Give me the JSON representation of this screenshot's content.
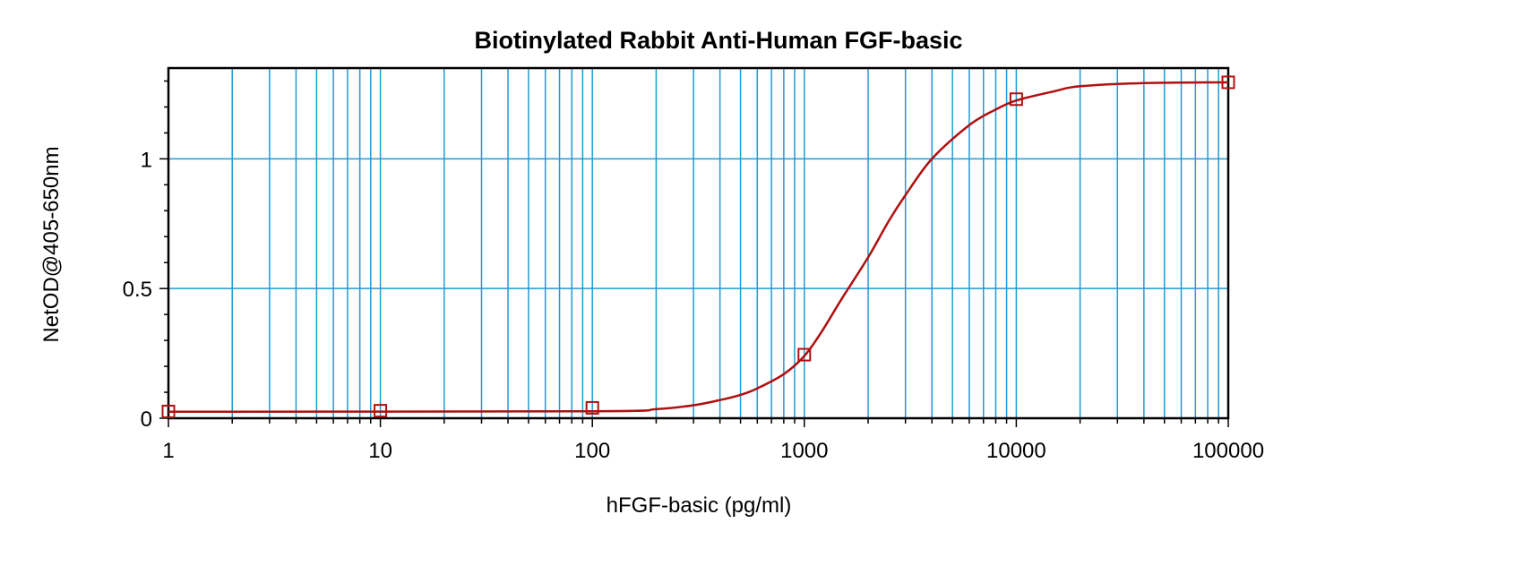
{
  "chart_data": {
    "type": "line",
    "title": "Biotinylated Rabbit Anti-Human FGF-basic",
    "xlabel": "hFGF-basic (pg/ml)",
    "ylabel": "NetOD@405-650nm",
    "x_scale": "log",
    "xlim": [
      1,
      100000
    ],
    "ylim": [
      0,
      1.35
    ],
    "x_ticks": [
      1,
      10,
      100,
      1000,
      10000,
      100000
    ],
    "x_tick_labels": [
      "1",
      "10",
      "100",
      "1000",
      "10000",
      "100000"
    ],
    "y_ticks": [
      0,
      0.5,
      1
    ],
    "y_tick_labels": [
      "0",
      "0.5",
      "1"
    ],
    "grid": true,
    "colors": {
      "grid": "#1e9bd7",
      "series": "#b01010",
      "frame": "#000000"
    },
    "series": [
      {
        "points": [
          {
            "x": 1,
            "y": 0.026
          },
          {
            "x": 10,
            "y": 0.029
          },
          {
            "x": 100,
            "y": 0.04
          },
          {
            "x": 1000,
            "y": 0.245
          },
          {
            "x": 10000,
            "y": 1.23
          },
          {
            "x": 100000,
            "y": 1.295
          }
        ],
        "fit_curve": [
          {
            "x": 1,
            "y": 0.025
          },
          {
            "x": 100,
            "y": 0.027
          },
          {
            "x": 200,
            "y": 0.035
          },
          {
            "x": 300,
            "y": 0.05
          },
          {
            "x": 400,
            "y": 0.07
          },
          {
            "x": 500,
            "y": 0.09
          },
          {
            "x": 600,
            "y": 0.115
          },
          {
            "x": 800,
            "y": 0.17
          },
          {
            "x": 1000,
            "y": 0.24
          },
          {
            "x": 1200,
            "y": 0.33
          },
          {
            "x": 1500,
            "y": 0.46
          },
          {
            "x": 2000,
            "y": 0.62
          },
          {
            "x": 2500,
            "y": 0.76
          },
          {
            "x": 3000,
            "y": 0.86
          },
          {
            "x": 4000,
            "y": 1.0
          },
          {
            "x": 6000,
            "y": 1.13
          },
          {
            "x": 8000,
            "y": 1.19
          },
          {
            "x": 10000,
            "y": 1.225
          },
          {
            "x": 15000,
            "y": 1.26
          },
          {
            "x": 20000,
            "y": 1.28
          },
          {
            "x": 40000,
            "y": 1.292
          },
          {
            "x": 100000,
            "y": 1.295
          }
        ]
      }
    ]
  }
}
